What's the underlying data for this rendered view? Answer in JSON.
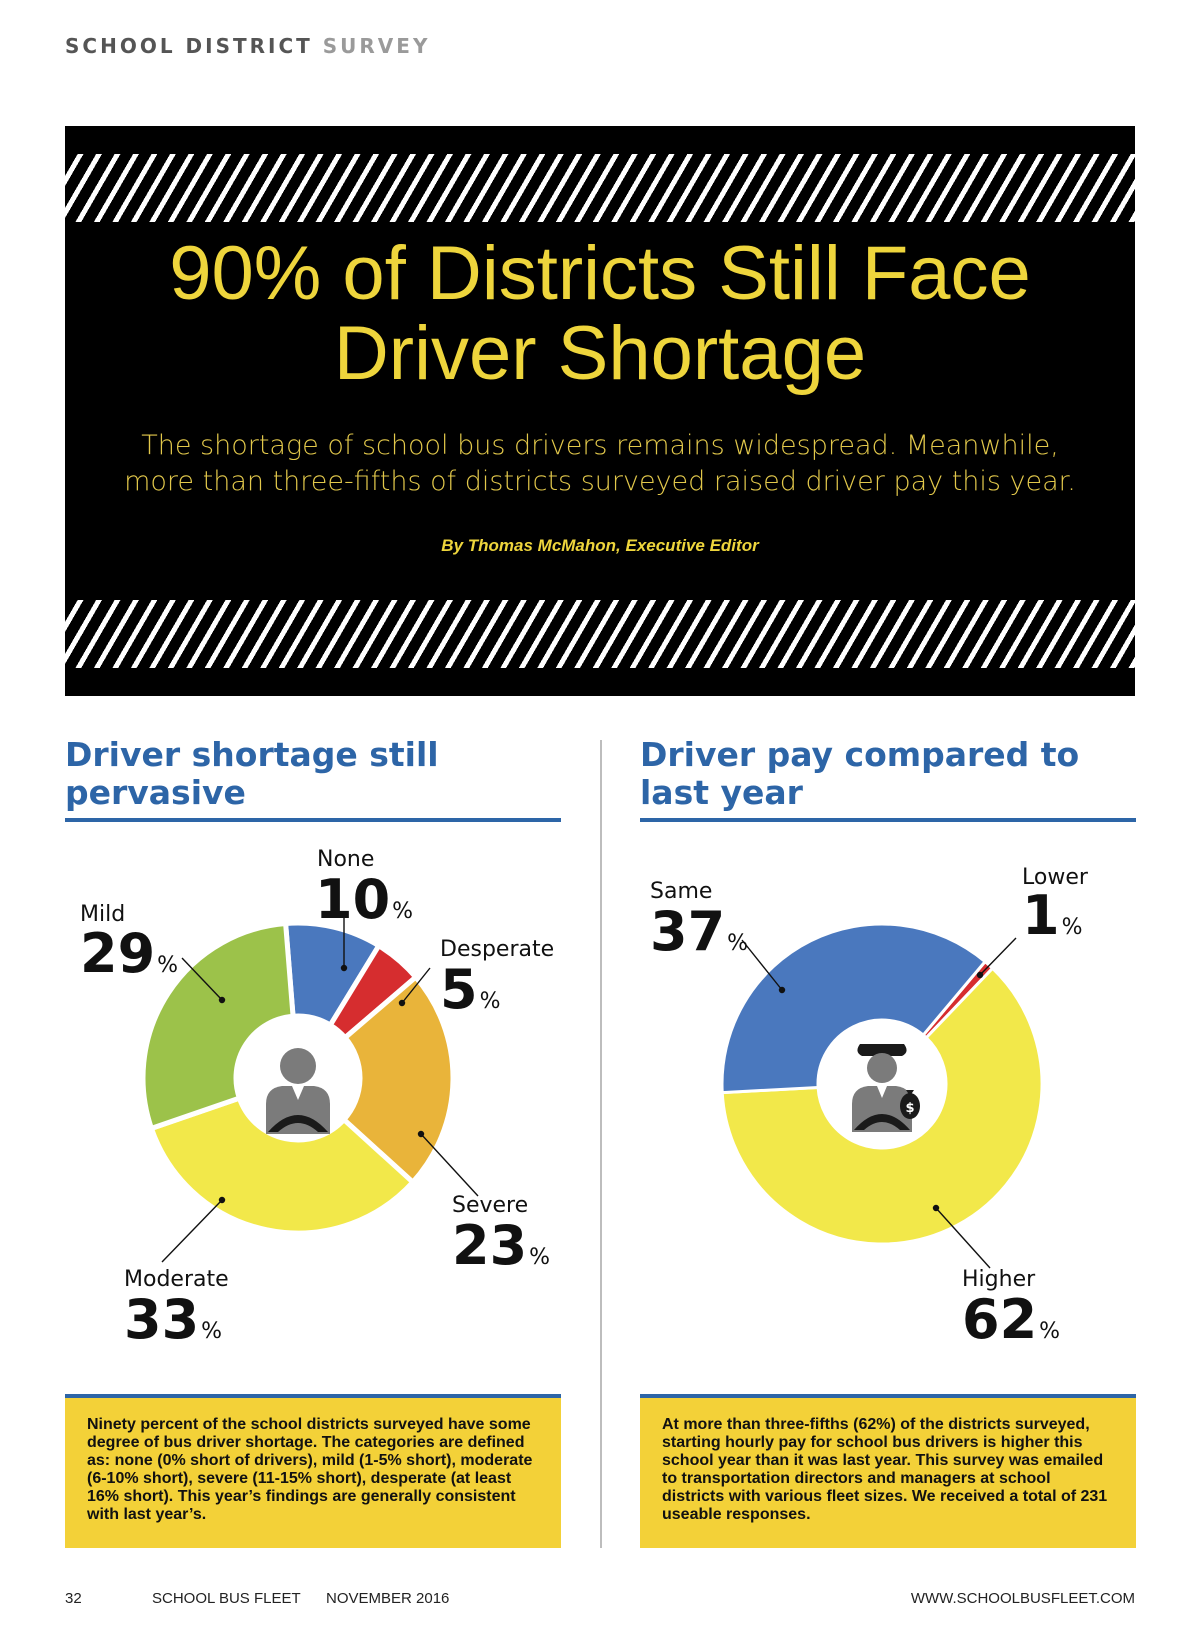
{
  "section_label": {
    "part1": "SCHOOL DISTRICT",
    "part2": "SURVEY"
  },
  "banner": {
    "headline_line1": "90% of Districts Still Face",
    "headline_line2": "Driver Shortage",
    "subhead_line1": "The shortage of school bus drivers remains widespread. Meanwhile,",
    "subhead_line2": "more than three-fifths of districts surveyed raised driver pay this year.",
    "byline": "By Thomas McMahon, Executive Editor"
  },
  "chart_data": [
    {
      "type": "pie",
      "title": "Driver shortage still pervasive",
      "unit": "%",
      "categories": [
        "None",
        "Desperate",
        "Severe",
        "Moderate",
        "Mild"
      ],
      "values": [
        10,
        5,
        23,
        33,
        29
      ],
      "colors": [
        "#4a78be",
        "#d62d2f",
        "#e9b43a",
        "#f2e84a",
        "#9cc24a"
      ],
      "icon": "driver-icon"
    },
    {
      "type": "pie",
      "title": "Driver pay compared to last year",
      "unit": "%",
      "categories": [
        "Lower",
        "Higher",
        "Same"
      ],
      "values": [
        1,
        62,
        37
      ],
      "colors": [
        "#d62d2f",
        "#f2e84a",
        "#4a78be"
      ],
      "icon": "paid-driver-icon"
    }
  ],
  "notes": {
    "left": "Ninety percent of the school districts surveyed have some degree of bus driver shortage. The categories are defined as: none (0% short of drivers), mild (1-5% short), moderate (6-10% short), severe (11-15% short), desperate (at least 16% short). This year’s findings are generally consistent with last year’s.",
    "right": "At more than three-fifths (62%) of the districts surveyed, starting hourly pay for school bus drivers is higher this school year than it was last year. This survey was emailed to transportation directors and managers at school districts with various fleet sizes. We received a total of 231 useable responses."
  },
  "footer": {
    "page_number": "32",
    "publication": "SCHOOL BUS FLEET",
    "issue": "NOVEMBER 2016",
    "website": "WWW.SCHOOLBUSFLEET.COM"
  }
}
